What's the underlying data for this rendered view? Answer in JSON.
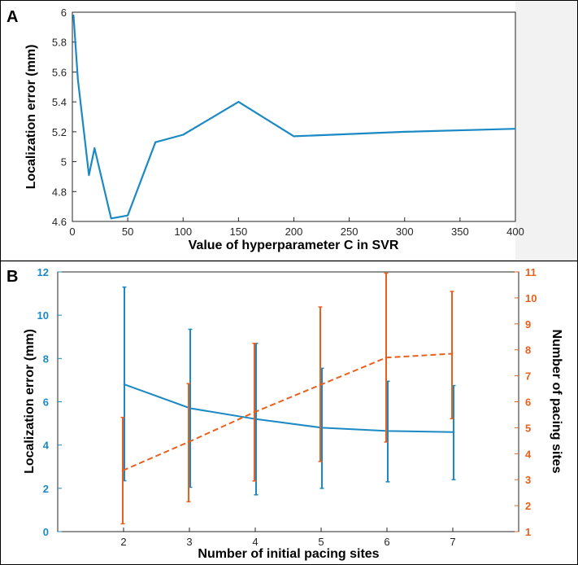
{
  "chart_data": [
    {
      "panel_label": "A",
      "type": "line",
      "xlabel": "Value of hyperparameter C in SVR",
      "ylabel": "Localization error (mm)",
      "xlim": [
        0,
        400
      ],
      "ylim": [
        4.6,
        6.0
      ],
      "xticks": [
        0,
        50,
        100,
        150,
        200,
        250,
        300,
        350,
        400
      ],
      "xtick_labels": [
        "0",
        "50",
        "100",
        "150",
        "200",
        "250",
        "300",
        "350",
        "400"
      ],
      "yticks": [
        4.6,
        4.8,
        5.0,
        5.2,
        5.4,
        5.6,
        5.8,
        6.0
      ],
      "ytick_labels": [
        "4.6",
        "4.8",
        "5",
        "5.2",
        "5.4",
        "5.6",
        "5.8",
        "6"
      ],
      "color": "#1b8ac4",
      "x": [
        1,
        5,
        15,
        20,
        35,
        50,
        75,
        100,
        150,
        200,
        300,
        400
      ],
      "y": [
        5.98,
        5.55,
        4.91,
        5.09,
        4.62,
        4.64,
        5.13,
        5.18,
        5.4,
        5.17,
        5.2,
        5.22
      ]
    },
    {
      "panel_label": "B",
      "type": "line",
      "xlabel": "Number of initial pacing sites",
      "ylabel_left": "Localization error (mm)",
      "ylabel_right": "Number of pacing sites",
      "xlim": [
        1,
        8
      ],
      "ylim_left": [
        0,
        12
      ],
      "ylim_right": [
        1,
        11
      ],
      "xticks": [
        2,
        3,
        4,
        5,
        6,
        7
      ],
      "xtick_labels": [
        "2",
        "3",
        "4",
        "5",
        "6",
        "7"
      ],
      "yticks_left": [
        0,
        2,
        4,
        6,
        8,
        10,
        12
      ],
      "ytick_labels_left": [
        "0",
        "2",
        "4",
        "6",
        "8",
        "10",
        "12"
      ],
      "yticks_right": [
        1,
        2,
        3,
        4,
        5,
        6,
        7,
        8,
        9,
        10,
        11
      ],
      "ytick_labels_right": [
        "1",
        "2",
        "3",
        "4",
        "5",
        "6",
        "7",
        "8",
        "9",
        "10",
        "11"
      ],
      "series": [
        {
          "name": "Localization error",
          "axis": "left",
          "style": "solid",
          "color": "#1b8ac4",
          "x": [
            2,
            3,
            4,
            5,
            6,
            7
          ],
          "values": [
            6.8,
            5.7,
            5.2,
            4.8,
            4.65,
            4.6
          ],
          "err_low": [
            2.35,
            2.05,
            1.7,
            2.0,
            2.3,
            2.4
          ],
          "err_high": [
            11.3,
            9.35,
            8.7,
            7.55,
            6.95,
            6.75
          ]
        },
        {
          "name": "Number of pacing sites",
          "axis": "right",
          "style": "dashed",
          "color": "#e8601c",
          "x": [
            2,
            3,
            4,
            5,
            6,
            7
          ],
          "values": [
            3.35,
            4.45,
            5.6,
            6.65,
            7.7,
            7.85
          ],
          "err_low": [
            1.3,
            2.15,
            2.95,
            3.7,
            4.45,
            5.35
          ],
          "err_high": [
            5.4,
            6.7,
            8.25,
            9.65,
            10.95,
            10.25
          ]
        }
      ]
    }
  ]
}
